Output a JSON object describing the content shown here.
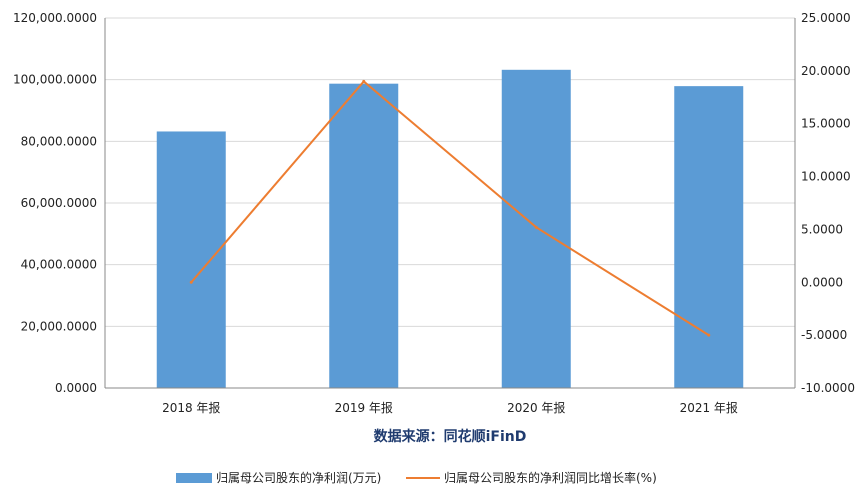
{
  "chart_data": {
    "type": "bar",
    "categories": [
      "2018 年报",
      "2019 年报",
      "2020 年报",
      "2021 年报"
    ],
    "series": [
      {
        "name": "归属母公司股东的净利润(万元)",
        "type": "bar",
        "axis": "left",
        "color": "#5b9bd5",
        "values": [
          83200,
          98700,
          103200,
          97900
        ]
      },
      {
        "name": "归属母公司股东的净利润同比增长率(%)",
        "type": "line",
        "axis": "right",
        "color": "#ed7d31",
        "values": [
          0.0,
          19.0,
          5.2,
          -5.0
        ]
      }
    ],
    "y_left": {
      "ylim": [
        0,
        120000
      ],
      "ticks": [
        0,
        20000,
        40000,
        60000,
        80000,
        100000,
        120000
      ],
      "tick_labels": [
        "0.0000",
        "20,000.0000",
        "40,000.0000",
        "60,000.0000",
        "80,000.0000",
        "100,000.0000",
        "120,000.0000"
      ]
    },
    "y_right": {
      "ylim": [
        -10,
        25
      ],
      "ticks": [
        -10,
        -5,
        0,
        5,
        10,
        15,
        20,
        25
      ],
      "tick_labels": [
        "-10.0000",
        "-5.0000",
        "0.0000",
        "5.0000",
        "10.0000",
        "15.0000",
        "20.0000",
        "25.0000"
      ]
    },
    "caption": "数据来源：同花顺iFinD",
    "legend_position": "bottom",
    "grid": "horizontal"
  }
}
